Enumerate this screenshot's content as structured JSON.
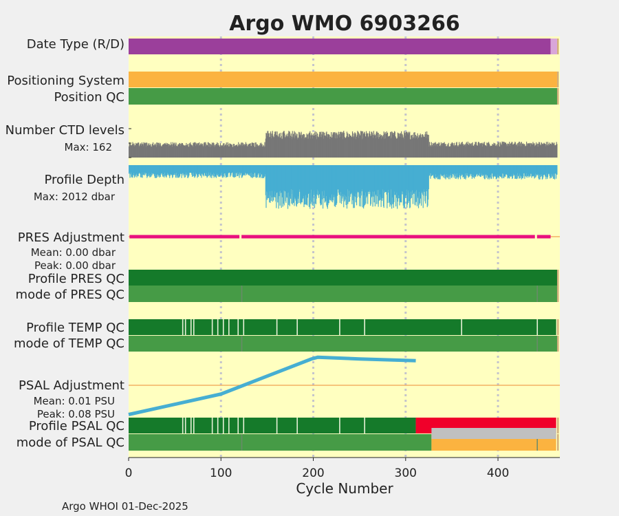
{
  "chart_data": {
    "type": "bar",
    "title": "Argo WMO 6903266",
    "xlabel": "Cycle Number",
    "xlim": [
      0,
      467
    ],
    "xticks": [
      0,
      100,
      200,
      300,
      400
    ],
    "grid": true,
    "footer": "Argo WHOI 01-Dec-2025",
    "colors": {
      "background": "#ffffc0",
      "title": "#0e8cc0",
      "purple": "#9b3f9b",
      "orange": "#fbb340",
      "green": "#469b46",
      "dark_green": "#157a2a",
      "gray": "#777777",
      "blue": "#46aed2",
      "magenta": "#e8107e",
      "red": "#f0002a",
      "light_gray": "#c0c0c0"
    },
    "rows": {
      "date_type": {
        "label": "Date Type (R/D)",
        "segments": [
          {
            "start": 0,
            "end": 457,
            "category": "D",
            "color": "#9b3f9b"
          },
          {
            "start": 457,
            "end": 464,
            "category": "R",
            "color": "#d9a6d9"
          }
        ]
      },
      "positioning_system": {
        "label": "Positioning System",
        "segments": [
          {
            "start": 0,
            "end": 464,
            "category": "GPS",
            "color": "#fbb340"
          }
        ]
      },
      "position_qc": {
        "label": "Position QC",
        "segments": [
          {
            "start": 0,
            "end": 464,
            "category": "1",
            "color": "#469b46"
          }
        ]
      },
      "ctd_levels": {
        "label": "Number CTD levels",
        "max_label": "Max: 162",
        "max": 162,
        "color": "#777777",
        "phases": [
          {
            "start": 0,
            "end": 148,
            "mean": 75
          },
          {
            "start": 148,
            "end": 325,
            "mean": 130
          },
          {
            "start": 325,
            "end": 464,
            "mean": 78
          }
        ]
      },
      "profile_depth": {
        "label": "Profile Depth",
        "max_label": "Max: 2012 dbar",
        "max_dbar": 2012,
        "color": "#46aed2",
        "phases": [
          {
            "start": 0,
            "end": 148,
            "depth_dbar": 1000
          },
          {
            "start": 148,
            "end": 325,
            "depth_dbar": 2000
          },
          {
            "start": 325,
            "end": 464,
            "depth_dbar": 1100
          }
        ]
      },
      "pres_adjustment": {
        "label": "PRES Adjustment",
        "mean_label": "Mean: 0.00 dbar",
        "peak_label": "Peak: 0.00 dbar",
        "mean_dbar": 0.0,
        "peak_dbar": 0.0,
        "extent": [
          1,
          457
        ],
        "gaps": [
          120,
          440
        ]
      },
      "profile_pres_qc": {
        "label": "Profile PRES QC",
        "segments": [
          {
            "start": 0,
            "end": 464,
            "category": "A",
            "color": "#157a2a"
          }
        ]
      },
      "mode_pres_qc": {
        "label": "mode of PRES QC",
        "segments": [
          {
            "start": 0,
            "end": 464,
            "category": "1",
            "color": "#469b46"
          }
        ]
      },
      "profile_temp_qc": {
        "label": "Profile TEMP QC",
        "segments": [
          {
            "start": 0,
            "end": 463,
            "category": "A",
            "color": "#157a2a"
          }
        ],
        "light_ticks": [
          58,
          61,
          67,
          70,
          90,
          96,
          102,
          108,
          118,
          124,
          160,
          182,
          228,
          255,
          360,
          442
        ]
      },
      "mode_temp_qc": {
        "label": "mode of TEMP QC",
        "segments": [
          {
            "start": 0,
            "end": 464,
            "category": "1",
            "color": "#469b46"
          }
        ]
      },
      "psal_adjustment": {
        "label": "PSAL Adjustment",
        "mean_label": "Mean: 0.01 PSU",
        "peak_label": "Peak: 0.08 PSU",
        "mean_psu": 0.01,
        "peak_psu": 0.08,
        "line": [
          [
            0,
            -0.05
          ],
          [
            100,
            -0.015
          ],
          [
            198,
            0.045
          ],
          [
            205,
            0.048
          ],
          [
            250,
            0.045
          ],
          [
            311,
            0.042
          ]
        ],
        "zero": 0.0
      },
      "profile_psal_qc": {
        "label": "Profile PSAL QC",
        "segments": [
          {
            "start": 0,
            "end": 311,
            "category": "A",
            "color": "#157a2a"
          },
          {
            "start": 311,
            "end": 463,
            "category": "F",
            "color": "#f0002a"
          }
        ],
        "light_ticks": [
          58,
          61,
          67,
          70,
          90,
          96,
          102,
          108,
          118,
          124,
          160,
          182,
          228,
          255
        ]
      },
      "mode_psal_qc": {
        "label": "mode of PSAL QC",
        "segments": [
          {
            "start": 0,
            "end": 328,
            "category": "1",
            "color": "#469b46"
          },
          {
            "start": 328,
            "end": 463,
            "category": "3",
            "color": "#fbb340"
          }
        ],
        "gray_band": {
          "start": 328,
          "end": 463,
          "color": "#c0c0c0"
        }
      }
    }
  }
}
